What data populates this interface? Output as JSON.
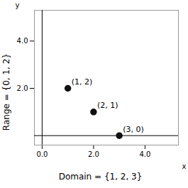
{
  "chart_data": {
    "type": "scatter",
    "x": [
      1,
      2,
      3
    ],
    "values": [
      2,
      1,
      0
    ],
    "value_labels": [
      "(1, 2)",
      "(2, 1)",
      "(3, 0)"
    ],
    "data_labels": true,
    "color": "#111111",
    "xlabel": "x",
    "ylabel": "y",
    "xlim": [
      -0.3,
      5.3
    ],
    "ylim": [
      -0.4,
      5.3
    ],
    "xticks": [
      0,
      2,
      4
    ],
    "yticks": [
      2,
      4
    ],
    "annotations": [
      "Domain = {1, 2, 3}",
      "Range = {0, 1, 2}"
    ],
    "grid": false
  }
}
